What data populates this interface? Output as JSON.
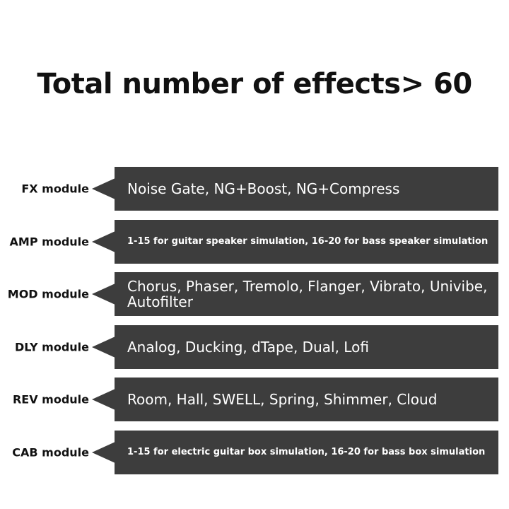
{
  "title": "Total number of effects> 60",
  "modules": [
    {
      "name": "FX module",
      "description": "Noise Gate, NG+Boost, NG+Compress"
    },
    {
      "name": "AMP module",
      "description": "1-15 for guitar speaker simulation, 16-20 for bass speaker simulation"
    },
    {
      "name": "MOD module",
      "description": "Chorus, Phaser, Tremolo, Flanger, Vibrato, Univibe, Autofilter"
    },
    {
      "name": "DLY module",
      "description": "Analog, Ducking, dTape, Dual, Lofi"
    },
    {
      "name": "REV module",
      "description": "Room, Hall, SWELL, Spring, Shimmer, Cloud"
    },
    {
      "name": "CAB module",
      "description": "1-15 for electric guitar box simulation, 16-20 for bass box simulation"
    }
  ]
}
